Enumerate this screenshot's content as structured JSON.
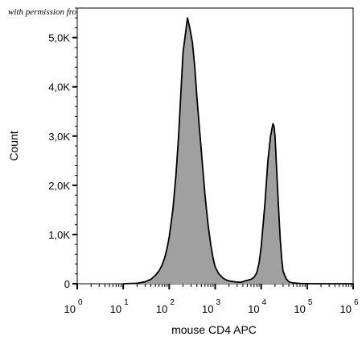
{
  "watermark": "with permission from OriGene",
  "chart_data": {
    "type": "area",
    "title": "",
    "xlabel": "mouse CD4 APC",
    "ylabel": "Count",
    "x_scale": "log",
    "xlim": [
      1,
      1000000
    ],
    "ylim": [
      0,
      5600
    ],
    "x_ticks": [
      {
        "base": "10",
        "exp": "0",
        "value": 1
      },
      {
        "base": "10",
        "exp": "1",
        "value": 10
      },
      {
        "base": "10",
        "exp": "2",
        "value": 100
      },
      {
        "base": "10",
        "exp": "3",
        "value": 1000
      },
      {
        "base": "10",
        "exp": "4",
        "value": 10000
      },
      {
        "base": "10",
        "exp": "5",
        "value": 100000
      },
      {
        "base": "10",
        "exp": "6",
        "value": 1000000
      }
    ],
    "y_ticks": [
      {
        "label": "0",
        "value": 0
      },
      {
        "label": "1,0K",
        "value": 1000
      },
      {
        "label": "2,0K",
        "value": 2000
      },
      {
        "label": "3,0K",
        "value": 3000
      },
      {
        "label": "4,0K",
        "value": 4000
      },
      {
        "label": "5,0K",
        "value": 5000
      }
    ],
    "fill_color": "#a0a0a0",
    "line_color": "#000000",
    "series": [
      {
        "x": [
          10,
          20,
          30,
          40,
          50,
          60,
          70,
          80,
          90,
          100,
          120,
          140,
          160,
          180,
          200,
          220,
          250,
          280,
          320,
          360,
          400,
          460,
          520,
          600,
          700,
          800,
          900,
          1000,
          1200,
          1500,
          1800,
          2200,
          2600,
          3000,
          3500,
          4000,
          4500,
          5000,
          6000,
          7000,
          8000,
          9000,
          10000,
          12000,
          14000,
          16000,
          18000,
          19000,
          20000,
          21000,
          22000,
          24000,
          26000,
          28000,
          30000,
          35000,
          40000,
          50000,
          70000,
          100000,
          200000,
          500000,
          1000000
        ],
        "y": [
          0,
          10,
          40,
          90,
          170,
          260,
          380,
          530,
          720,
          950,
          1500,
          2200,
          3000,
          3900,
          4700,
          5000,
          5400,
          5200,
          4900,
          4400,
          3800,
          3100,
          2500,
          1800,
          1200,
          800,
          520,
          340,
          200,
          110,
          70,
          50,
          40,
          35,
          30,
          40,
          60,
          70,
          90,
          130,
          220,
          420,
          750,
          1600,
          2500,
          3000,
          3250,
          3200,
          3000,
          2600,
          2200,
          1500,
          900,
          500,
          250,
          100,
          40,
          15,
          5,
          2,
          0,
          0,
          0
        ]
      }
    ]
  }
}
